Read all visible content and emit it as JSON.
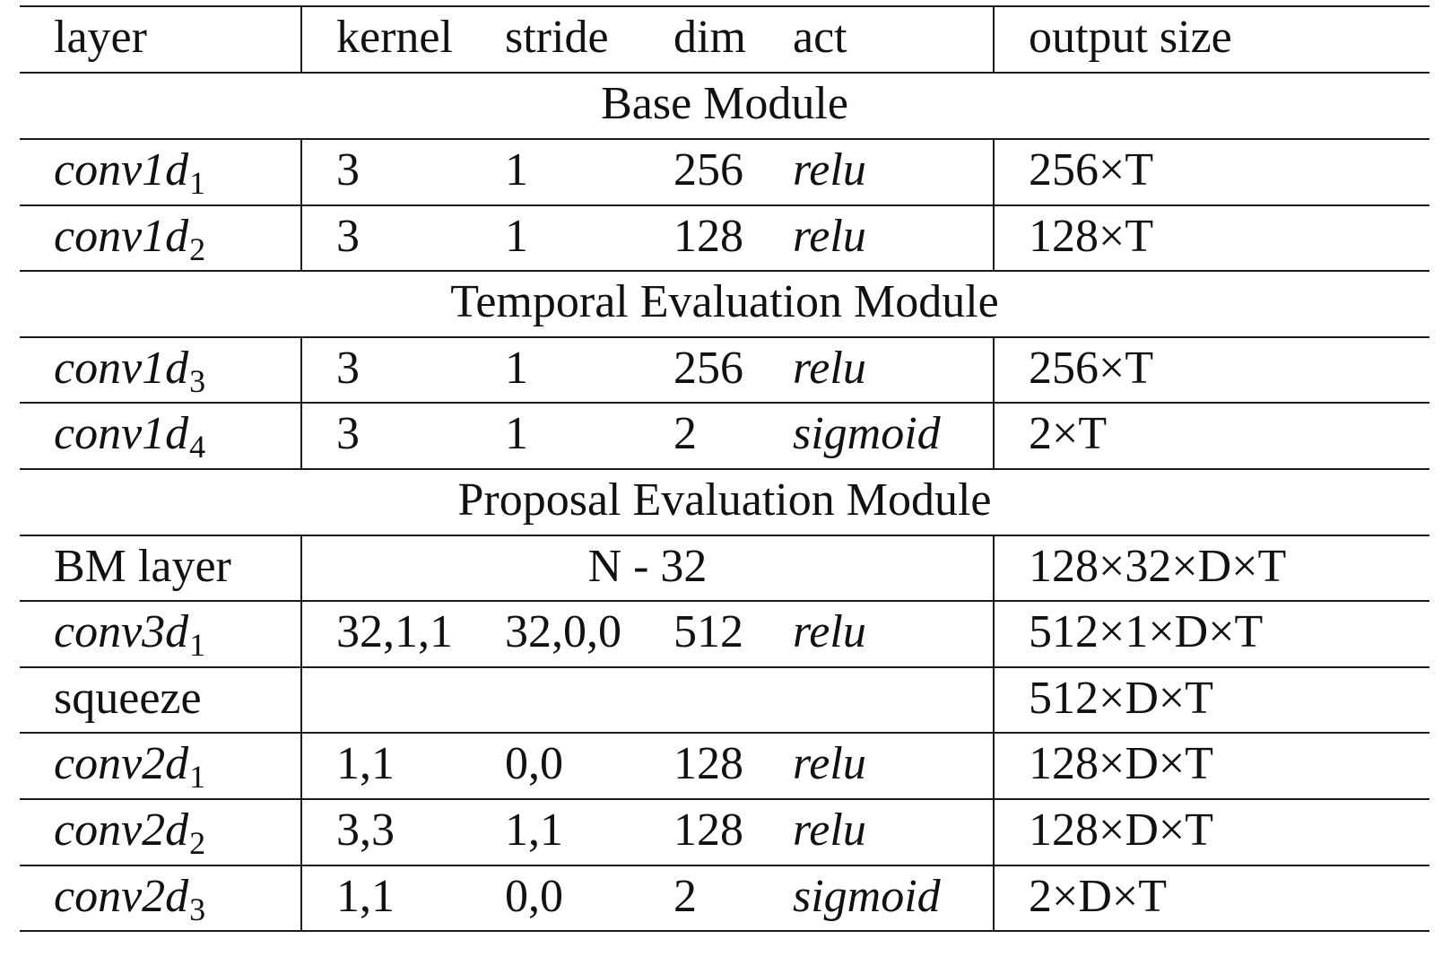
{
  "header": {
    "layer": "layer",
    "kernel": "kernel",
    "stride": "stride",
    "dim": "dim",
    "act": "act",
    "output": "output size"
  },
  "modules": {
    "base": "Base Module",
    "tem": "Temporal Evaluation Module",
    "pem": "Proposal Evaluation Module"
  },
  "rows": [
    {
      "base": "conv1d",
      "sub": "1",
      "kernel": "3",
      "stride": "1",
      "dim": "256",
      "act": "relu",
      "output": "256×T"
    },
    {
      "base": "conv1d",
      "sub": "2",
      "kernel": "3",
      "stride": "1",
      "dim": "128",
      "act": "relu",
      "output": "128×T"
    },
    {
      "base": "conv1d",
      "sub": "3",
      "kernel": "3",
      "stride": "1",
      "dim": "256",
      "act": "relu",
      "output": "256×T"
    },
    {
      "base": "conv1d",
      "sub": "4",
      "kernel": "3",
      "stride": "1",
      "dim": "2",
      "act": "sigmoid",
      "output": "2×T"
    },
    {
      "layer": "BM layer",
      "span": "N - 32",
      "output": "128×32×D×T"
    },
    {
      "base": "conv3d",
      "sub": "1",
      "kernel": "32,1,1",
      "stride": "32,0,0",
      "dim": "512",
      "act": "relu",
      "output": "512×1×D×T"
    },
    {
      "layer": "squeeze",
      "output": "512×D×T"
    },
    {
      "base": "conv2d",
      "sub": "1",
      "kernel": "1,1",
      "stride": "0,0",
      "dim": "128",
      "act": "relu",
      "output": "128×D×T"
    },
    {
      "base": "conv2d",
      "sub": "2",
      "kernel": "3,3",
      "stride": "1,1",
      "dim": "128",
      "act": "relu",
      "output": "128×D×T"
    },
    {
      "base": "conv2d",
      "sub": "3",
      "kernel": "1,1",
      "stride": "0,0",
      "dim": "2",
      "act": "sigmoid",
      "output": "2×D×T"
    }
  ]
}
